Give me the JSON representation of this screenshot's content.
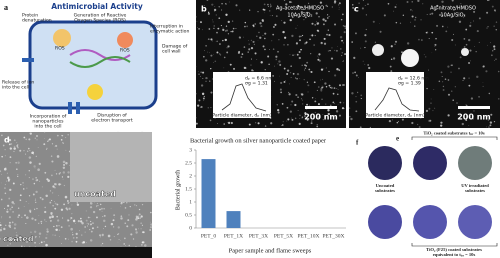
{
  "panel_a": {
    "letter": "a",
    "title": "Antimicrobial Activity",
    "protein_denaturation": [
      "Protein",
      "denaturation"
    ],
    "ros_generation": [
      "Generation of Reactive",
      "Oxygen Species (ROS)"
    ],
    "enzymatic": [
      "Interruption in",
      "enzymatic action"
    ],
    "cell_wall": [
      "Damage of",
      "cell wall"
    ],
    "ion_release": [
      "Release of ion",
      "into the cell"
    ],
    "incorporation": [
      "Incorporation of",
      "nanoparticles",
      "into the cell"
    ],
    "electron_transport": [
      "Disruption of",
      "electron transport"
    ],
    "ros_marks": [
      "ROS",
      "ROS"
    ]
  },
  "panel_b": {
    "letter": "b",
    "precursor": "Ag-acetate/HMDSO",
    "sample": "10Ag/SiO₂",
    "scale": "200 nm",
    "inset": {
      "dp": "dₚ = 6.6 nm",
      "sigma": "σg = 1.31",
      "xlabel": "Particle diameter, dₚ (nm)"
    }
  },
  "panel_c": {
    "letter": "c",
    "precursor": "Ag-nitrate/HMDSO",
    "sample": "10Ag/SiO₂",
    "scale": "200 nm",
    "inset": {
      "dp": "dₚ = 12.6 nm",
      "sigma": "σg = 1.39",
      "xlabel": "Particle diameter, dₚ (nm)"
    }
  },
  "panel_d": {
    "letter": "d",
    "uncoated": "uncoated",
    "coated": "coated"
  },
  "chart_data": {
    "type": "bar",
    "title": "Bacterial growth on silver nanoparticle coated paper",
    "y_label": "Bacterial growth",
    "x_label": "Paper sample and flame sweeps",
    "categories": [
      "PET_0",
      "PET_1X",
      "PET_3X",
      "PET_5X",
      "PET_10X",
      "PET_30X"
    ],
    "values": [
      2.65,
      0.65,
      0,
      0,
      0,
      0
    ],
    "color": "#4f81bd",
    "ylim": [
      0,
      3
    ],
    "yticks": [
      0,
      0.5,
      1,
      1.5,
      2,
      2.5,
      3
    ],
    "grid": false
  },
  "panel_ef": {
    "letter_e": "e",
    "letter_f": "f",
    "coated_title": "TiO₂ coated substrates tᵢᵣᵣ = 10s",
    "uncoated": [
      "Uncoated",
      "substrates"
    ],
    "uv": [
      "UV irradiated",
      "substrates"
    ],
    "f25": [
      "TiO₂ (F25) coated substrates",
      "equivalent to tᵢᵣᵣ = 10s"
    ]
  }
}
